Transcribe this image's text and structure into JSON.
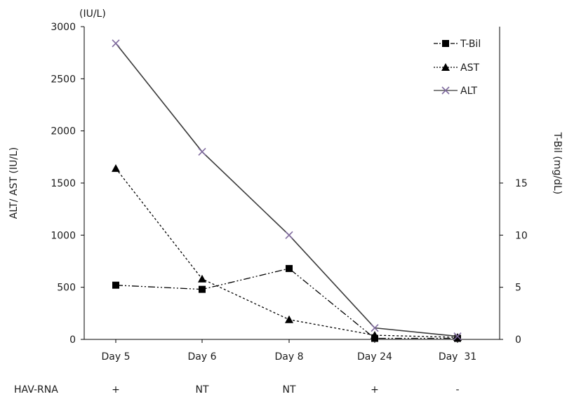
{
  "chart_data": {
    "type": "line",
    "categories": [
      "Day 5",
      "Day 6",
      "Day 8",
      "Day 24",
      "Day  31"
    ],
    "left_axis": {
      "unit_label": "(IU/L)",
      "label": "ALT/ AST (IU/L)",
      "ylim": [
        0,
        3000
      ],
      "ticks": [
        "0",
        "500",
        "1000",
        "1500",
        "2000",
        "2500",
        "3000"
      ]
    },
    "right_axis": {
      "label": "T-Bil (mg/dL)",
      "ylim": [
        0,
        30
      ],
      "ticks": [
        "0",
        "5",
        "10",
        "15"
      ]
    },
    "series": [
      {
        "name": "T-Bil",
        "axis": "right",
        "marker": "square",
        "dash": "dashdotdot",
        "color": "#000000",
        "values": [
          5.2,
          4.8,
          6.8,
          0.1,
          0.1
        ]
      },
      {
        "name": "AST",
        "axis": "left",
        "marker": "triangle",
        "dash": "dotted",
        "color": "#000000",
        "values": [
          1640,
          580,
          190,
          40,
          20
        ]
      },
      {
        "name": "ALT",
        "axis": "left",
        "marker": "x",
        "dash": "solid",
        "color": "#7f6a9e",
        "values": [
          2840,
          1800,
          1000,
          110,
          30
        ]
      }
    ],
    "legend_position": "top-right",
    "grid": false
  },
  "hav_row": {
    "label": "HAV-RNA",
    "values": [
      "+",
      "NT",
      "NT",
      "+",
      "-"
    ]
  }
}
